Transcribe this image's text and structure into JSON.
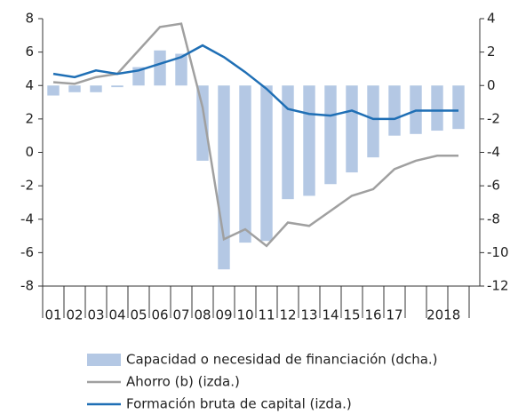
{
  "chart_data": {
    "type": "bar-line",
    "categories": [
      "01",
      "02",
      "03",
      "04",
      "05",
      "06",
      "07",
      "08",
      "09",
      "10",
      "11",
      "12",
      "13",
      "14",
      "15",
      "16",
      "17",
      null,
      "2018",
      null
    ],
    "series": [
      {
        "name": "Capacidad o necesidad de financiación (dcha.)",
        "type": "bar",
        "axis": "y2",
        "color": "#b4c8e4",
        "values": [
          -0.6,
          -0.4,
          -0.4,
          -0.1,
          1.1,
          2.1,
          1.9,
          -4.5,
          -11.0,
          -9.4,
          -9.3,
          -6.8,
          -6.6,
          -5.9,
          -5.2,
          -4.3,
          -3.0,
          -2.9,
          -2.7,
          -2.6
        ]
      },
      {
        "name": "Ahorro (b) (izda.)",
        "type": "line",
        "axis": "y",
        "color": "#a0a0a0",
        "values": [
          4.2,
          4.1,
          4.5,
          4.7,
          6.1,
          7.5,
          7.7,
          2.7,
          -5.2,
          -4.6,
          -5.6,
          -4.2,
          -4.4,
          -3.5,
          -2.6,
          -2.2,
          -1.0,
          -0.5,
          -0.2,
          -0.2
        ]
      },
      {
        "name": "Formación bruta de capital (izda.)",
        "type": "line",
        "axis": "y",
        "color": "#1f6fb5",
        "values": [
          4.7,
          4.5,
          4.9,
          4.7,
          4.9,
          5.3,
          5.7,
          6.4,
          5.7,
          4.8,
          3.8,
          2.6,
          2.3,
          2.2,
          2.5,
          2.0,
          2.0,
          2.5,
          2.5,
          2.5
        ]
      }
    ],
    "ylim": [
      -8,
      8
    ],
    "yticks": [
      -8,
      -6,
      -4,
      -2,
      0,
      2,
      4,
      6,
      8
    ],
    "y2lim": [
      -12,
      4
    ],
    "y2ticks": [
      -12,
      -10,
      -8,
      -6,
      -4,
      -2,
      0,
      2,
      4
    ]
  }
}
